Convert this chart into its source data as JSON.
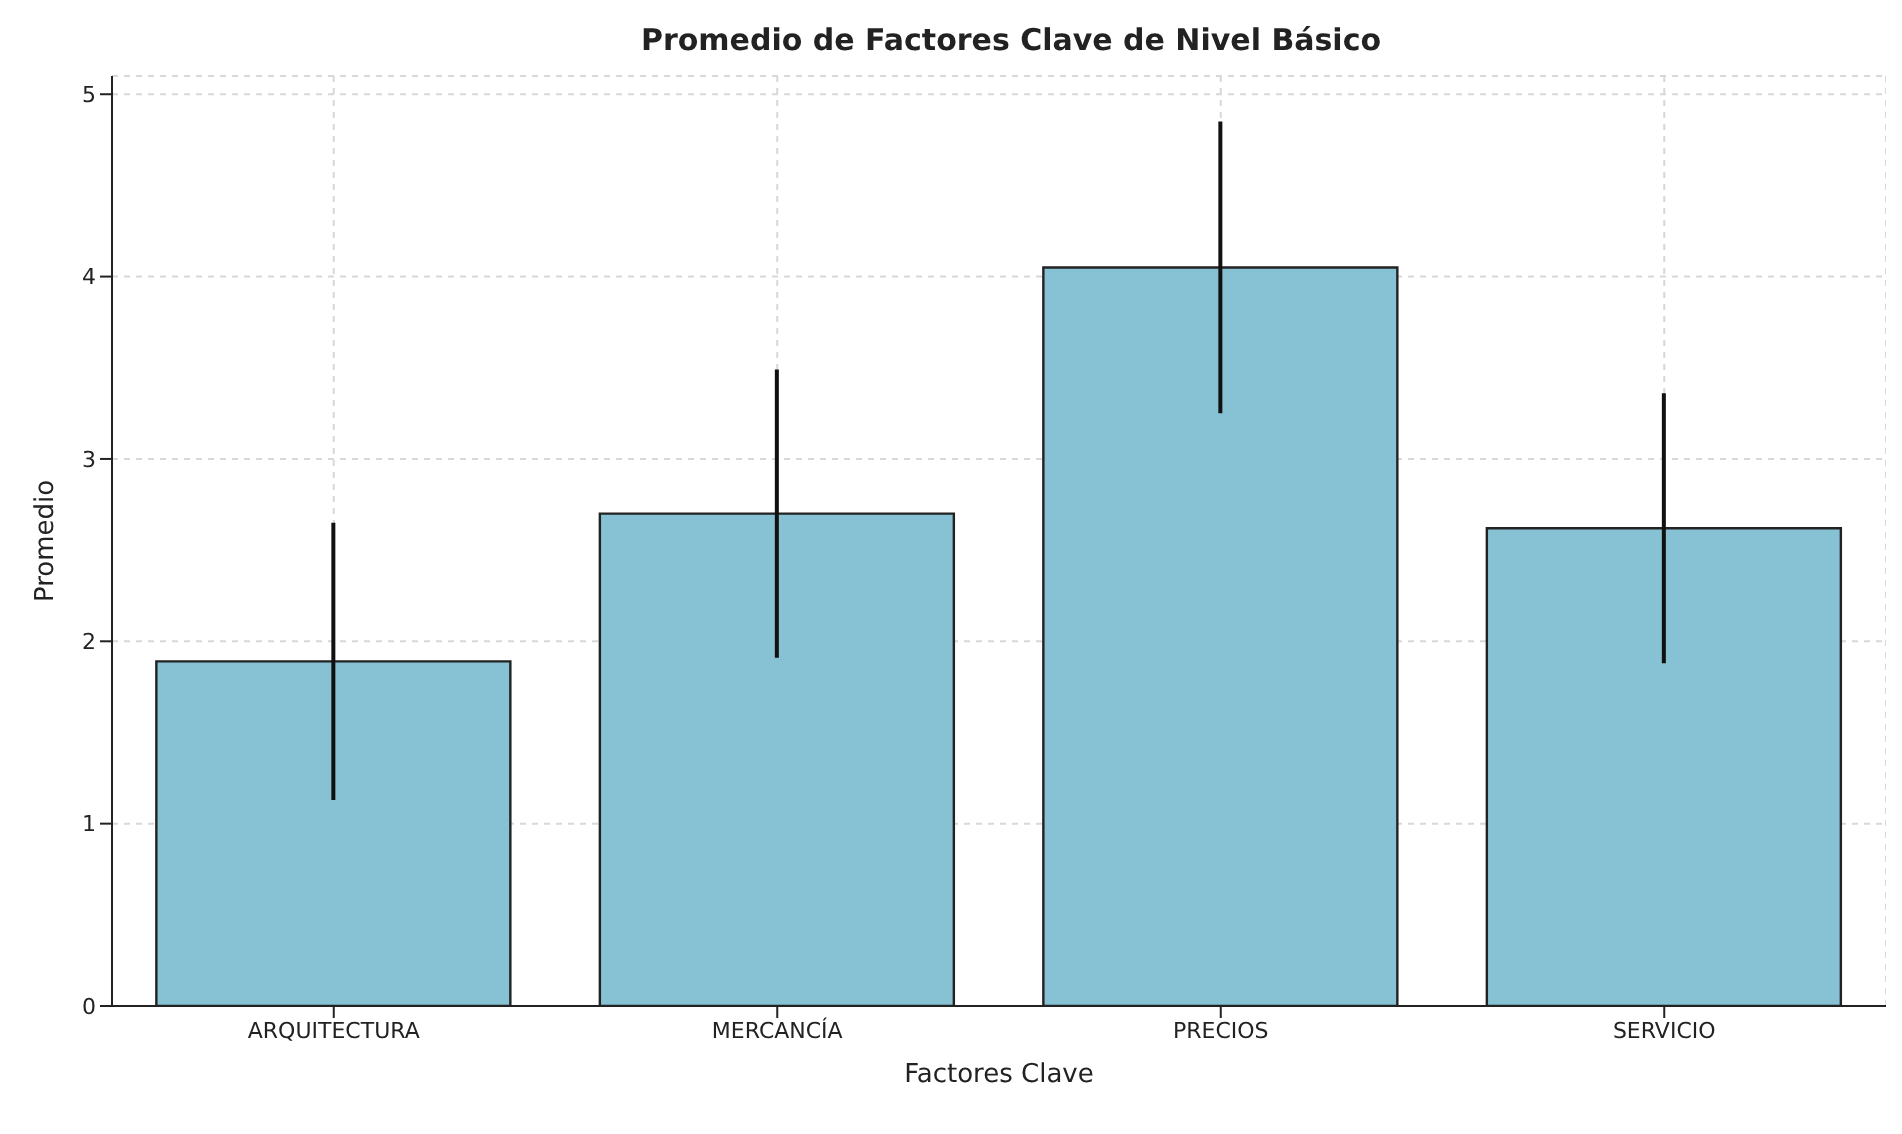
{
  "chart_data": {
    "type": "bar",
    "title": "Promedio de Factores Clave de Nivel Básico",
    "xlabel": "Factores Clave",
    "ylabel": "Promedio",
    "categories": [
      "ARQUITECTURA",
      "MERCANCÍA",
      "PRECIOS",
      "SERVICIO"
    ],
    "values": [
      1.89,
      2.7,
      4.05,
      2.62
    ],
    "errors": [
      0.76,
      0.79,
      0.8,
      0.74
    ],
    "color": "#86c2d4",
    "ylim": [
      0,
      5.1
    ],
    "yticks": [
      0,
      1,
      2,
      3,
      4,
      5
    ],
    "grid": true
  }
}
